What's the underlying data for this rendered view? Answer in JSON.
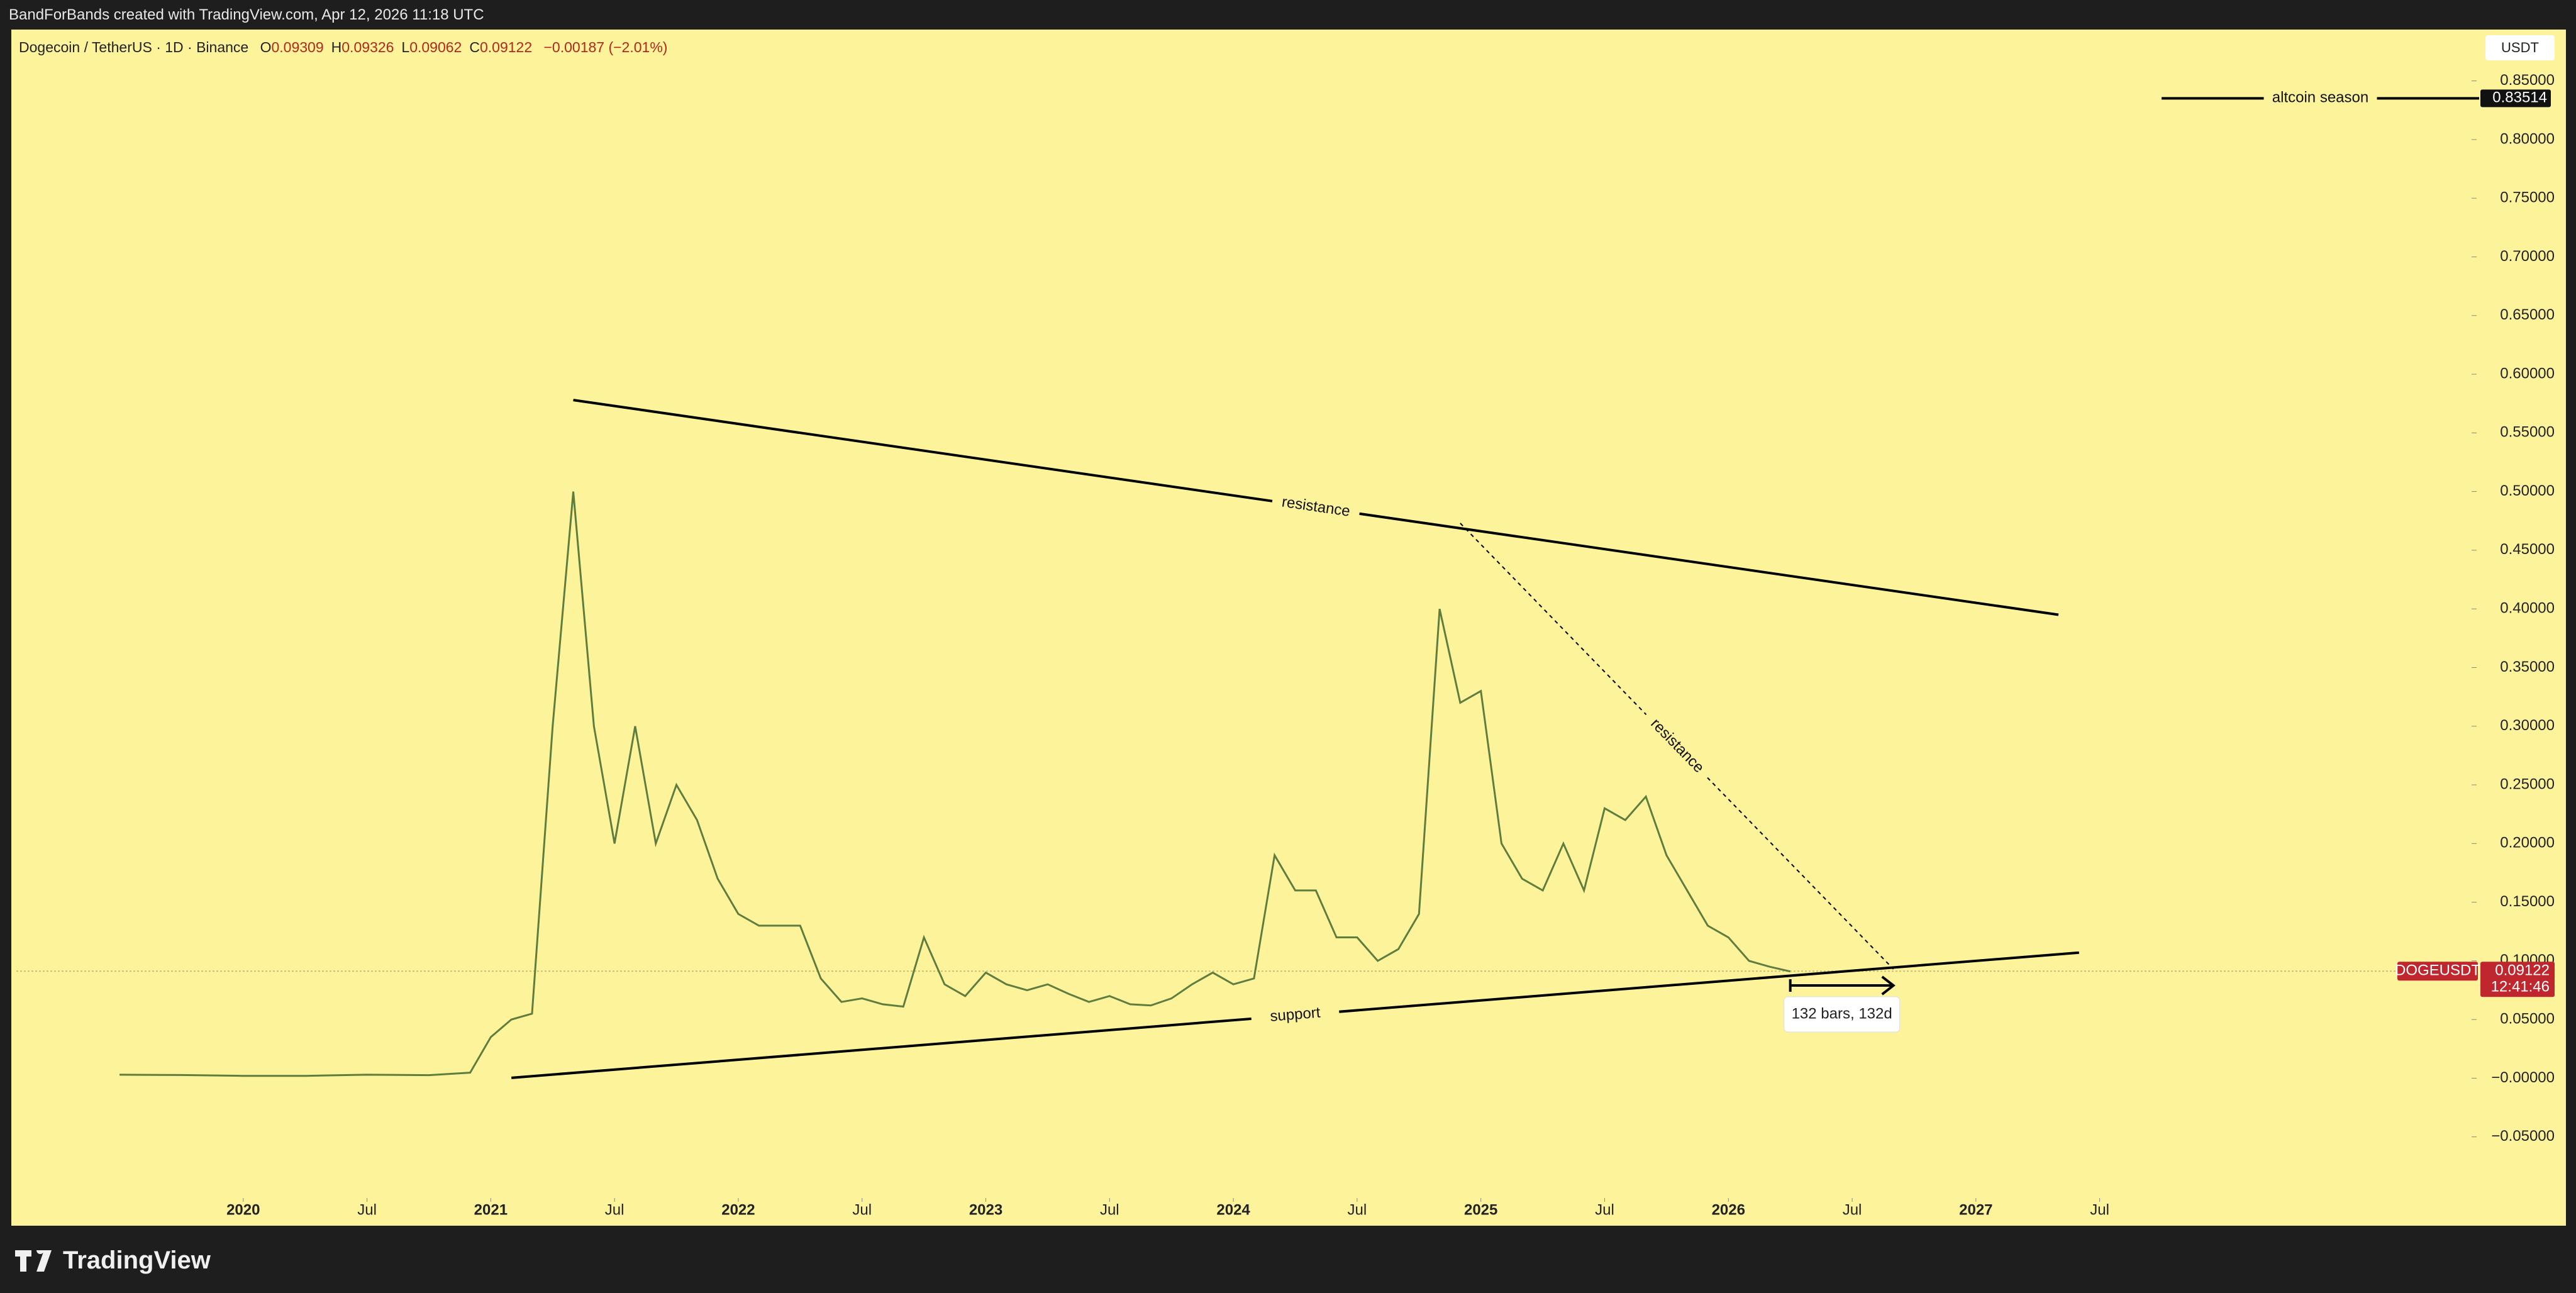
{
  "topbar": {
    "credit": "BandForBands created with TradingView.com, Apr 12, 2026 11:18 UTC"
  },
  "footer": {
    "brand": "TradingView"
  },
  "chart_data": {
    "type": "line",
    "title": "Dogecoin / TetherUS · 1D · Binance",
    "ohlc": {
      "labels": [
        "O",
        "H",
        "L",
        "C"
      ],
      "values": [
        0.09309,
        0.09326,
        0.09062,
        0.09122
      ]
    },
    "change": {
      "value": -0.00187,
      "label": "−0.00187 (−2.01%)"
    },
    "y_unit": "USDT",
    "grid": false,
    "x": [
      "2019-07",
      "2019-10",
      "2020-01",
      "2020-04",
      "2020-07",
      "2020-10",
      "2020-12",
      "2021-01",
      "2021-02",
      "2021-03",
      "2021-04",
      "2021-05",
      "2021-06",
      "2021-07",
      "2021-08",
      "2021-09",
      "2021-10",
      "2021-11",
      "2021-12",
      "2022-01",
      "2022-02",
      "2022-03",
      "2022-04",
      "2022-05",
      "2022-06",
      "2022-07",
      "2022-08",
      "2022-09",
      "2022-10",
      "2022-11",
      "2022-12",
      "2023-01",
      "2023-02",
      "2023-03",
      "2023-04",
      "2023-05",
      "2023-06",
      "2023-07",
      "2023-08",
      "2023-09",
      "2023-10",
      "2023-11",
      "2023-12",
      "2024-01",
      "2024-02",
      "2024-03",
      "2024-04",
      "2024-05",
      "2024-06",
      "2024-07",
      "2024-08",
      "2024-09",
      "2024-10",
      "2024-11",
      "2024-12",
      "2025-01",
      "2025-02",
      "2025-03",
      "2025-04",
      "2025-05",
      "2025-06",
      "2025-07",
      "2025-08",
      "2025-09",
      "2025-10",
      "2025-11",
      "2025-12",
      "2026-01",
      "2026-02",
      "2026-03",
      "2026-04"
    ],
    "series": [
      {
        "name": "DOGEUSDT",
        "color": "#5f7d3f",
        "values": [
          0.003,
          0.0027,
          0.002,
          0.002,
          0.003,
          0.0026,
          0.0047,
          0.035,
          0.05,
          0.055,
          0.3,
          0.5,
          0.3,
          0.2,
          0.3,
          0.2,
          0.25,
          0.22,
          0.17,
          0.14,
          0.13,
          0.13,
          0.13,
          0.085,
          0.065,
          0.068,
          0.063,
          0.061,
          0.12,
          0.08,
          0.07,
          0.09,
          0.08,
          0.075,
          0.08,
          0.072,
          0.065,
          0.07,
          0.063,
          0.062,
          0.068,
          0.08,
          0.09,
          0.08,
          0.085,
          0.19,
          0.16,
          0.16,
          0.12,
          0.12,
          0.1,
          0.11,
          0.14,
          0.4,
          0.32,
          0.33,
          0.2,
          0.17,
          0.16,
          0.2,
          0.16,
          0.23,
          0.22,
          0.24,
          0.19,
          0.16,
          0.13,
          0.12,
          0.1,
          0.095,
          0.091
        ]
      }
    ],
    "last_price": {
      "value": 0.09122,
      "countdown": "12:41:46"
    },
    "xlim": [
      "2019-02",
      "2029-01"
    ],
    "xticks": [
      {
        "value": "2020-01",
        "label": "2020"
      },
      {
        "value": "2020-07",
        "label": "Jul"
      },
      {
        "value": "2021-01",
        "label": "2021"
      },
      {
        "value": "2021-07",
        "label": "Jul"
      },
      {
        "value": "2022-01",
        "label": "2022"
      },
      {
        "value": "2022-07",
        "label": "Jul"
      },
      {
        "value": "2023-01",
        "label": "2023"
      },
      {
        "value": "2023-07",
        "label": "Jul"
      },
      {
        "value": "2024-01",
        "label": "2024"
      },
      {
        "value": "2024-07",
        "label": "Jul"
      },
      {
        "value": "2025-01",
        "label": "2025"
      },
      {
        "value": "2025-07",
        "label": "Jul"
      },
      {
        "value": "2026-01",
        "label": "2026"
      },
      {
        "value": "2026-07",
        "label": "Jul"
      },
      {
        "value": "2027-01",
        "label": "2027"
      },
      {
        "value": "2027-07",
        "label": "Jul"
      }
    ],
    "ylim": [
      -0.1,
      0.89
    ],
    "yticks": [
      {
        "value": 0.85,
        "label": "0.85000"
      },
      {
        "value": 0.8,
        "label": "0.80000"
      },
      {
        "value": 0.75,
        "label": "0.75000"
      },
      {
        "value": 0.7,
        "label": "0.70000"
      },
      {
        "value": 0.65,
        "label": "0.65000"
      },
      {
        "value": 0.6,
        "label": "0.60000"
      },
      {
        "value": 0.55,
        "label": "0.55000"
      },
      {
        "value": 0.5,
        "label": "0.50000"
      },
      {
        "value": 0.45,
        "label": "0.45000"
      },
      {
        "value": 0.4,
        "label": "0.40000"
      },
      {
        "value": 0.35,
        "label": "0.35000"
      },
      {
        "value": 0.3,
        "label": "0.30000"
      },
      {
        "value": 0.25,
        "label": "0.25000"
      },
      {
        "value": 0.2,
        "label": "0.20000"
      },
      {
        "value": 0.15,
        "label": "0.15000"
      },
      {
        "value": 0.1,
        "label": "0.10000"
      },
      {
        "value": 0.05,
        "label": "0.05000"
      },
      {
        "value": 0,
        "label": "−0.00000"
      },
      {
        "value": -0.05,
        "label": "−0.05000"
      }
    ],
    "trendlines": [
      {
        "label": "resistance",
        "style": "solid",
        "x": [
          "2021-05",
          "2027-05"
        ],
        "y": [
          0.578,
          0.395
        ]
      },
      {
        "label": "support",
        "style": "solid",
        "x": [
          "2021-02",
          "2027-06"
        ],
        "y": [
          0.0003,
          0.107
        ]
      },
      {
        "label": "resistance",
        "style": "dashed",
        "x": [
          "2024-12",
          "2026-09"
        ],
        "y": [
          0.473,
          0.093
        ]
      }
    ],
    "hline": {
      "label": "altcoin season",
      "value": 0.83514,
      "x_start": "2027-10"
    },
    "measure": {
      "label": "132 bars, 132d",
      "x": [
        "2026-04",
        "2026-09"
      ],
      "y": 0.079
    }
  }
}
